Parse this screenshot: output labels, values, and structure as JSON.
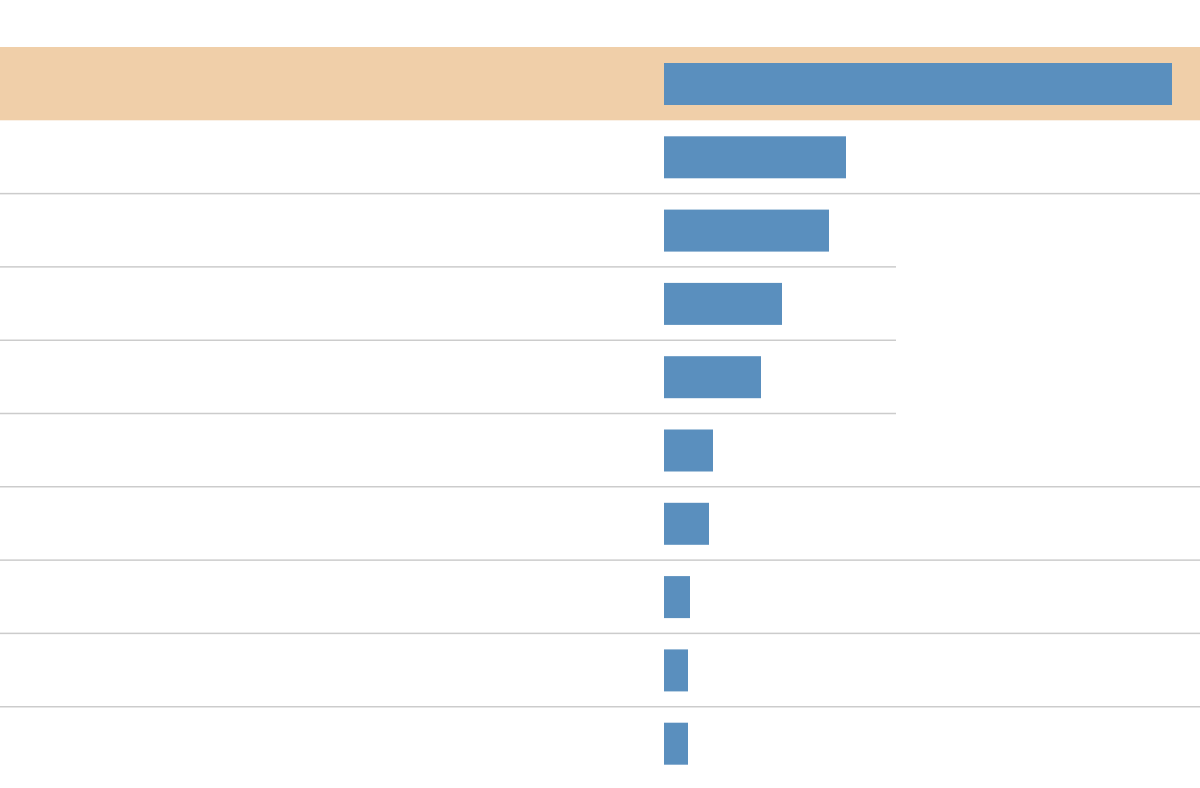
{
  "chart_data": {
    "type": "bar",
    "orientation": "horizontal",
    "categories": [
      null,
      null,
      null,
      null,
      null,
      null,
      null,
      null,
      null,
      null
    ],
    "values": [
      508,
      182,
      165,
      118,
      97,
      49,
      45,
      26,
      24,
      24
    ],
    "color": "#5a8fbe",
    "highlight": 0,
    "highlight_color": "#f0cfa9"
  }
}
